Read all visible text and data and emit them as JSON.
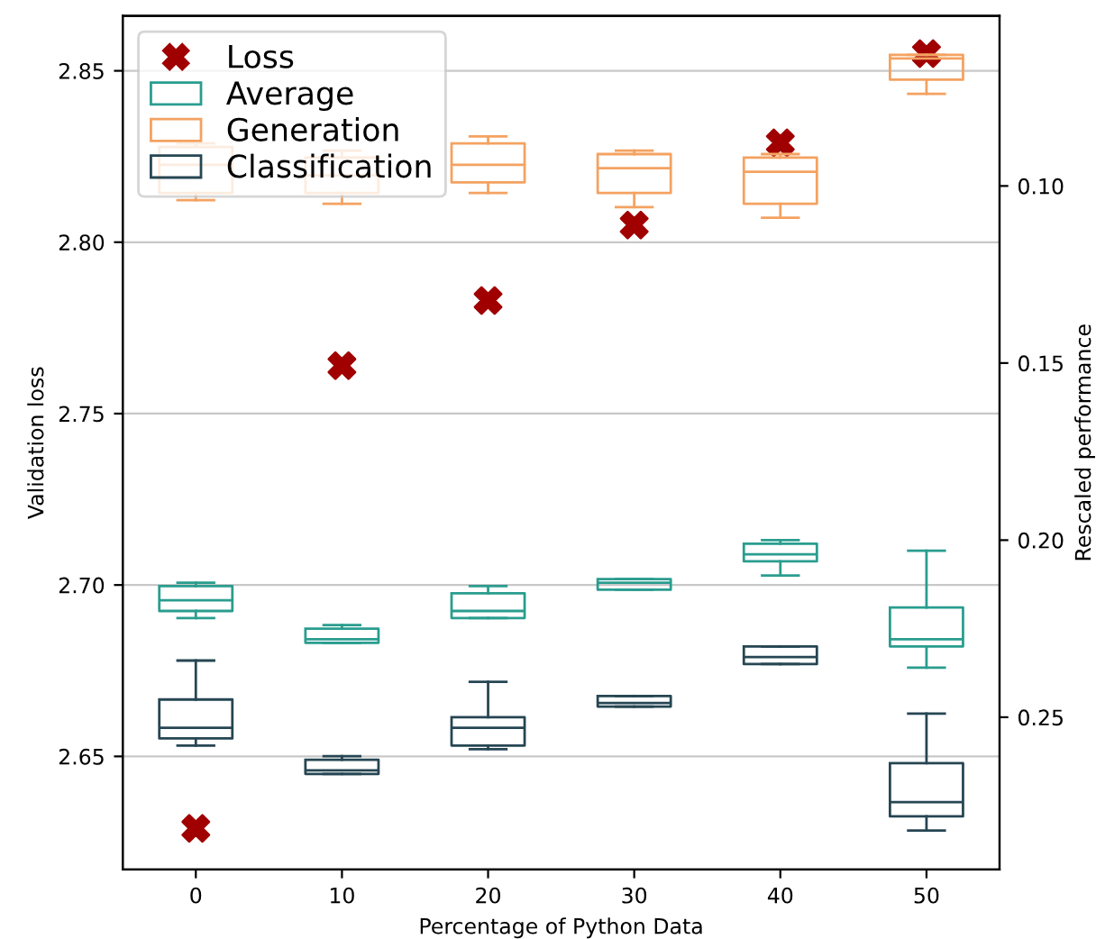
{
  "chart_data": {
    "type": "box",
    "xlabel": "Percentage of Python Data",
    "ylabel": "Validation loss",
    "y2label": "Rescaled performance",
    "xlim": [
      -5,
      55
    ],
    "xticks": [
      0,
      10,
      20,
      30,
      40,
      50
    ],
    "ylim": [
      2.617,
      2.866
    ],
    "yticks": [
      2.65,
      {
        "value": 2.7,
        "label": "2.70"
      },
      2.75,
      {
        "value": 2.8,
        "label": "2.80"
      },
      2.85
    ],
    "y2lim": [
      0.293,
      0.052
    ],
    "y2ticks": [
      {
        "value": 0.1,
        "label": "0.10"
      },
      0.15,
      {
        "value": 0.2,
        "label": "0.20"
      },
      0.25
    ],
    "grid": "y",
    "legend": "top left",
    "marker": "cross",
    "series": [
      {
        "name": "Loss",
        "type": "scatter",
        "color": "#a00000",
        "x": [
          0,
          10,
          20,
          30,
          40,
          50
        ],
        "values": [
          2.629,
          2.764,
          2.783,
          2.805,
          2.829,
          2.855
        ]
      },
      {
        "name": "Average",
        "axis": "y2",
        "color": "#2a9d8f",
        "x": [
          0,
          10,
          20,
          30,
          40,
          50
        ],
        "boxes": [
          {
            "low": 0.212,
            "q1": 0.213,
            "median": 0.217,
            "q3": 0.22,
            "high": 0.222
          },
          {
            "low": 0.224,
            "q1": 0.225,
            "median": 0.228,
            "q3": 0.229,
            "high": 0.229
          },
          {
            "low": 0.213,
            "q1": 0.215,
            "median": 0.22,
            "q3": 0.222,
            "high": 0.222
          },
          {
            "low": 0.211,
            "q1": 0.211,
            "median": 0.212,
            "q3": 0.214,
            "high": 0.214
          },
          {
            "low": 0.2,
            "q1": 0.201,
            "median": 0.204,
            "q3": 0.206,
            "high": 0.21
          },
          {
            "low": 0.203,
            "q1": 0.219,
            "median": 0.228,
            "q3": 0.23,
            "high": 0.236
          }
        ]
      },
      {
        "name": "Generation",
        "axis": "y2",
        "color": "#f4a261",
        "x": [
          0,
          10,
          20,
          30,
          40,
          50
        ],
        "boxes": [
          {
            "low": 0.088,
            "q1": 0.089,
            "median": 0.094,
            "q3": 0.102,
            "high": 0.104
          },
          {
            "low": 0.09,
            "q1": 0.092,
            "median": 0.097,
            "q3": 0.102,
            "high": 0.105
          },
          {
            "low": 0.086,
            "q1": 0.088,
            "median": 0.094,
            "q3": 0.099,
            "high": 0.102
          },
          {
            "low": 0.09,
            "q1": 0.091,
            "median": 0.095,
            "q3": 0.102,
            "high": 0.106
          },
          {
            "low": 0.091,
            "q1": 0.092,
            "median": 0.096,
            "q3": 0.105,
            "high": 0.109
          },
          {
            "low": 0.063,
            "q1": 0.063,
            "median": 0.064,
            "q3": 0.07,
            "high": 0.074
          }
        ]
      },
      {
        "name": "Classification",
        "axis": "y2",
        "color": "#264653",
        "x": [
          0,
          10,
          20,
          30,
          40,
          50
        ],
        "boxes": [
          {
            "low": 0.234,
            "q1": 0.245,
            "median": 0.253,
            "q3": 0.256,
            "high": 0.258
          },
          {
            "low": 0.261,
            "q1": 0.262,
            "median": 0.265,
            "q3": 0.266,
            "high": 0.266
          },
          {
            "low": 0.24,
            "q1": 0.25,
            "median": 0.253,
            "q3": 0.258,
            "high": 0.259
          },
          {
            "low": 0.244,
            "q1": 0.244,
            "median": 0.246,
            "q3": 0.247,
            "high": 0.247
          },
          {
            "low": 0.23,
            "q1": 0.23,
            "median": 0.233,
            "q3": 0.235,
            "high": 0.235
          },
          {
            "low": 0.249,
            "q1": 0.263,
            "median": 0.274,
            "q3": 0.278,
            "high": 0.282
          }
        ]
      }
    ]
  }
}
